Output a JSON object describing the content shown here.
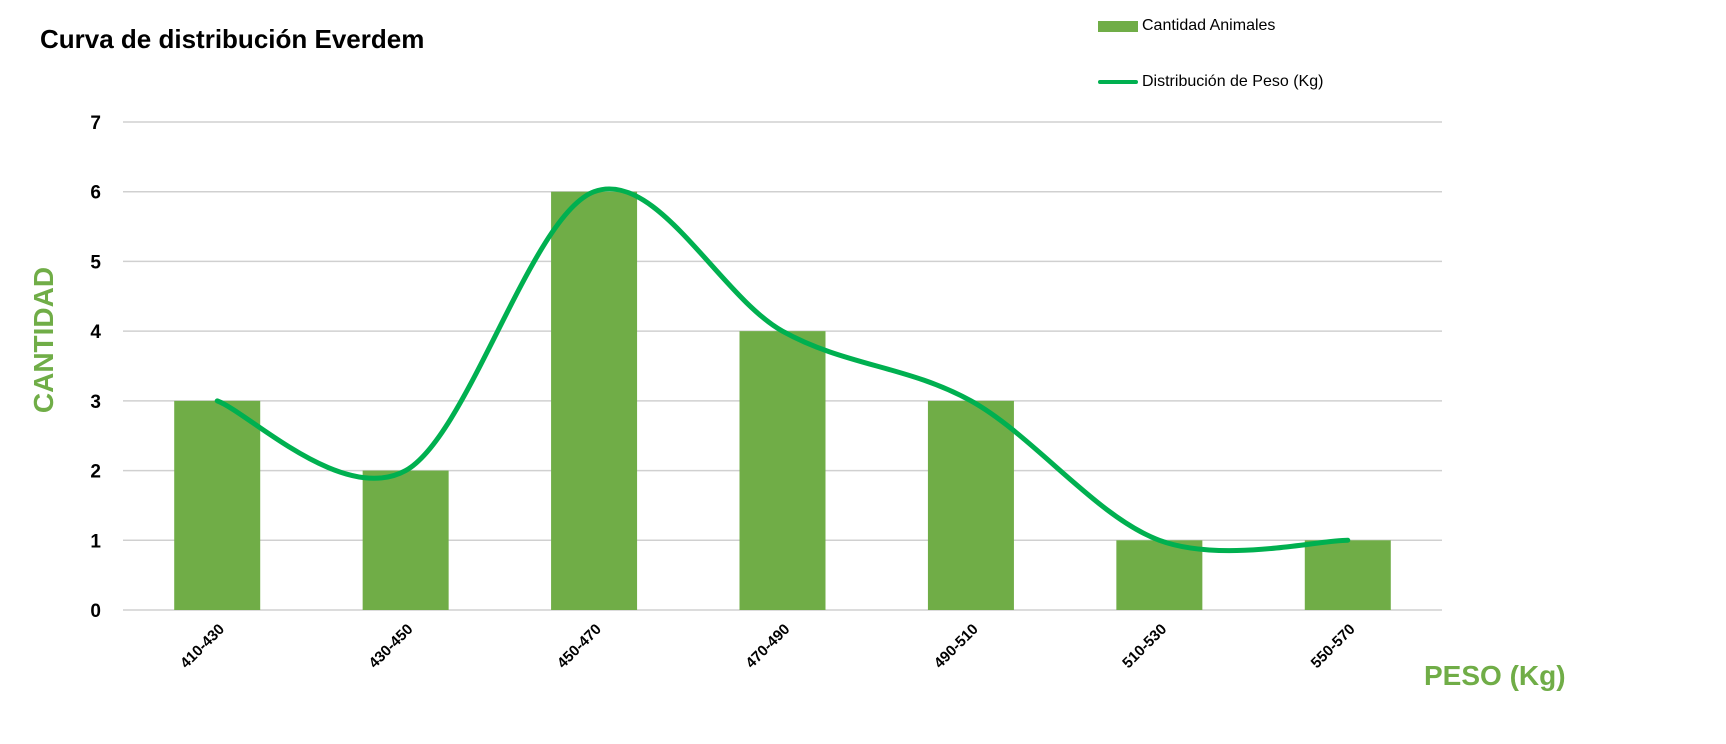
{
  "chart_data": {
    "type": "bar",
    "title": "Curva de distribución Everdem",
    "xlabel": "PESO (Kg)",
    "ylabel": "CANTIDAD",
    "categories": [
      "410-430",
      "430-450",
      "450-470",
      "470-490",
      "490-510",
      "510-530",
      "550-570"
    ],
    "ylim": [
      0,
      7
    ],
    "yticks": [
      "0",
      "1",
      "2",
      "3",
      "4",
      "5",
      "6",
      "7"
    ],
    "grid": true,
    "legend_position": "top-right",
    "series": [
      {
        "name": "Cantidad Animales",
        "type": "bar",
        "values": [
          3,
          2,
          6,
          4,
          3,
          1,
          1
        ],
        "color": "#70ad47"
      },
      {
        "name": "Distribución de Peso (Kg)",
        "type": "line",
        "smooth": true,
        "values": [
          3,
          2,
          6,
          4,
          3,
          1,
          1
        ],
        "color": "#00b050"
      }
    ]
  },
  "colors": {
    "axis_title": "#70ad47",
    "grid": "#d0d0d0"
  }
}
